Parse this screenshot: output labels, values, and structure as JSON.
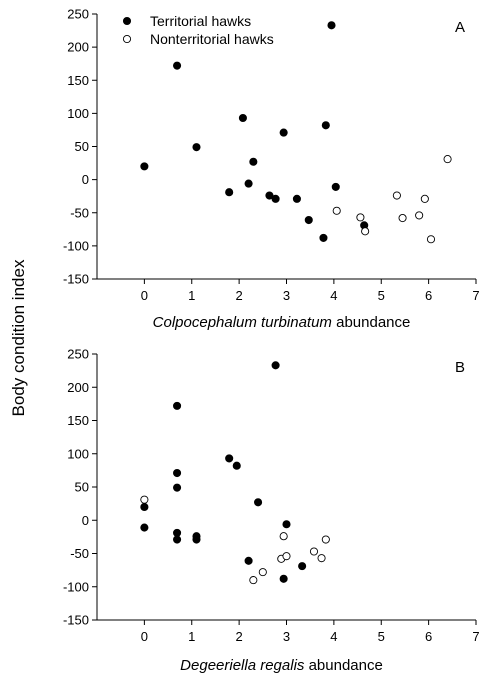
{
  "shared_ylabel": "Body condition index",
  "legend": {
    "items": [
      {
        "label": "Territorial hawks",
        "marker": "filled"
      },
      {
        "label": "Nonterritorial hawks",
        "marker": "open"
      }
    ]
  },
  "colors": {
    "marker": "#000000",
    "axis": "#000000",
    "background": "#ffffff"
  },
  "chart_data": [
    {
      "type": "scatter",
      "panel": "A",
      "xlabel_italic": "Colpocephalum turbinatum",
      "xlabel_rest": " abundance",
      "xlim": [
        -1,
        7
      ],
      "ylim": [
        -150,
        250
      ],
      "xticks": [
        "0",
        "1",
        "2",
        "3",
        "4",
        "5",
        "6",
        "7"
      ],
      "yticks": [
        "-150",
        "-100",
        "-50",
        "0",
        "50",
        "100",
        "150",
        "200",
        "250"
      ],
      "grid": false,
      "legend_position": "top-left",
      "series": [
        {
          "name": "Territorial hawks",
          "marker": "filled",
          "points": [
            [
              0,
              20
            ],
            [
              0.69,
              172
            ],
            [
              1.1,
              49
            ],
            [
              1.79,
              -19
            ],
            [
              2.08,
              93
            ],
            [
              2.2,
              -6
            ],
            [
              2.3,
              27
            ],
            [
              2.64,
              -24
            ],
            [
              2.77,
              -29
            ],
            [
              2.94,
              71
            ],
            [
              3.22,
              -29
            ],
            [
              3.47,
              -61
            ],
            [
              3.78,
              -88
            ],
            [
              3.83,
              82
            ],
            [
              3.95,
              233
            ],
            [
              4.04,
              -11
            ],
            [
              4.64,
              -69
            ]
          ]
        },
        {
          "name": "Nonterritorial hawks",
          "marker": "open",
          "points": [
            [
              4.06,
              -47
            ],
            [
              4.56,
              -57
            ],
            [
              4.66,
              -78
            ],
            [
              5.33,
              -24
            ],
            [
              5.45,
              -58
            ],
            [
              5.8,
              -54
            ],
            [
              5.92,
              -29
            ],
            [
              6.05,
              -90
            ],
            [
              6.4,
              31
            ]
          ]
        }
      ]
    },
    {
      "type": "scatter",
      "panel": "B",
      "xlabel_italic": "Degeeriella regalis",
      "xlabel_rest": " abundance",
      "xlim": [
        -1,
        7
      ],
      "ylim": [
        -150,
        250
      ],
      "xticks": [
        "0",
        "1",
        "2",
        "3",
        "4",
        "5",
        "6",
        "7"
      ],
      "yticks": [
        "-150",
        "-100",
        "-50",
        "0",
        "50",
        "100",
        "150",
        "200",
        "250"
      ],
      "grid": false,
      "series": [
        {
          "name": "Territorial hawks",
          "marker": "filled",
          "points": [
            [
              0,
              20
            ],
            [
              0,
              -11
            ],
            [
              0.69,
              172
            ],
            [
              0.69,
              71
            ],
            [
              0.69,
              49
            ],
            [
              0.69,
              -19
            ],
            [
              0.69,
              -29
            ],
            [
              1.1,
              -24
            ],
            [
              1.1,
              -29
            ],
            [
              1.79,
              93
            ],
            [
              1.95,
              82
            ],
            [
              2.2,
              -61
            ],
            [
              2.4,
              27
            ],
            [
              2.77,
              233
            ],
            [
              2.94,
              -88
            ],
            [
              3.0,
              -6
            ],
            [
              3.33,
              -69
            ]
          ]
        },
        {
          "name": "Nonterritorial hawks",
          "marker": "open",
          "points": [
            [
              0,
              31
            ],
            [
              2.3,
              -90
            ],
            [
              2.5,
              -78
            ],
            [
              2.89,
              -58
            ],
            [
              2.94,
              -24
            ],
            [
              3.0,
              -54
            ],
            [
              3.58,
              -47
            ],
            [
              3.74,
              -57
            ],
            [
              3.83,
              -29
            ]
          ]
        }
      ]
    }
  ]
}
